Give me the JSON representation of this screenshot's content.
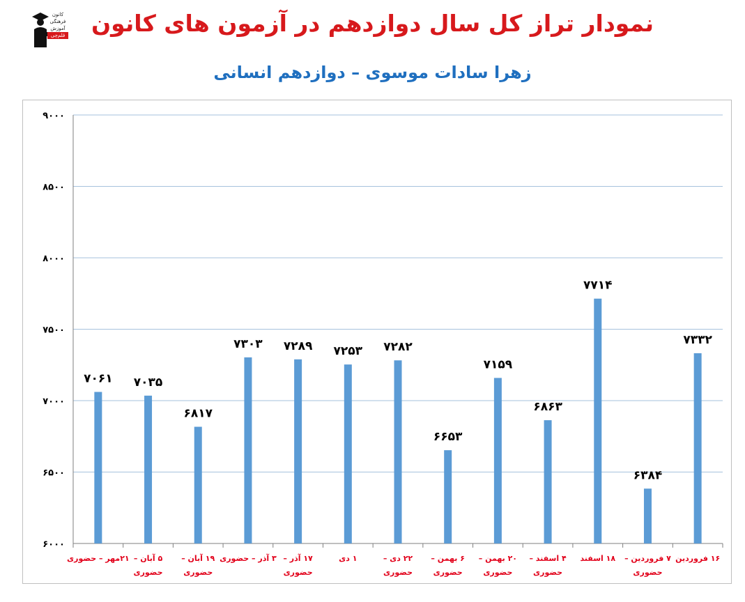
{
  "header": {
    "title": "نمودار تراز کل سال دوازدهم در آزمون های کانون",
    "subtitle": "زهرا سادات موسوی – دوازدهم انسانی"
  },
  "logo": {
    "icon": "graduate-logo-icon",
    "lines": [
      "کانون",
      "فرهنگی",
      "آموزش",
      "قلم‌چی"
    ]
  },
  "colors": {
    "title": "#d7191c",
    "subtitle": "#1f6fbf",
    "bar": "#5b9bd5",
    "category_label": "#e2001a",
    "value_label": "#000000",
    "grid": "#a6c2dd",
    "axis_tick_label": "#000000"
  },
  "chart_data": {
    "type": "bar",
    "title": "",
    "xlabel": "",
    "ylabel": "",
    "ylim": [
      6000,
      9000
    ],
    "yticks": [
      6000,
      6500,
      7000,
      7500,
      8000,
      8500,
      9000
    ],
    "ytick_labels": [
      "۶۰۰۰",
      "۶۵۰۰",
      "۷۰۰۰",
      "۷۵۰۰",
      "۸۰۰۰",
      "۸۵۰۰",
      "۹۰۰۰"
    ],
    "grid": true,
    "categories": [
      [
        "۲۱مهر – حضوری"
      ],
      [
        "۵ آبان –",
        "حضوری"
      ],
      [
        "۱۹ آبان –",
        "حضوری"
      ],
      [
        "۳ آذر – حضوری"
      ],
      [
        "۱۷ آذر –",
        "حضوری"
      ],
      [
        "۱ دی"
      ],
      [
        "۲۲ دی –",
        "حضوری"
      ],
      [
        "۶ بهمن –",
        "حضوری"
      ],
      [
        "۲۰ بهمن –",
        "حضوری"
      ],
      [
        "۴ اسفند –",
        "حضوری"
      ],
      [
        "۱۸ اسفند"
      ],
      [
        "۷ فروردین –",
        "حضوری"
      ],
      [
        "۱۶ فروردین"
      ]
    ],
    "values": [
      7061,
      7035,
      6817,
      7303,
      7289,
      7253,
      7282,
      6653,
      7159,
      6863,
      7714,
      6384,
      7332
    ],
    "value_labels": [
      "۷۰۶۱",
      "۷۰۳۵",
      "۶۸۱۷",
      "۷۳۰۳",
      "۷۲۸۹",
      "۷۲۵۳",
      "۷۲۸۲",
      "۶۶۵۳",
      "۷۱۵۹",
      "۶۸۶۳",
      "۷۷۱۴",
      "۶۳۸۴",
      "۷۳۳۲"
    ]
  }
}
